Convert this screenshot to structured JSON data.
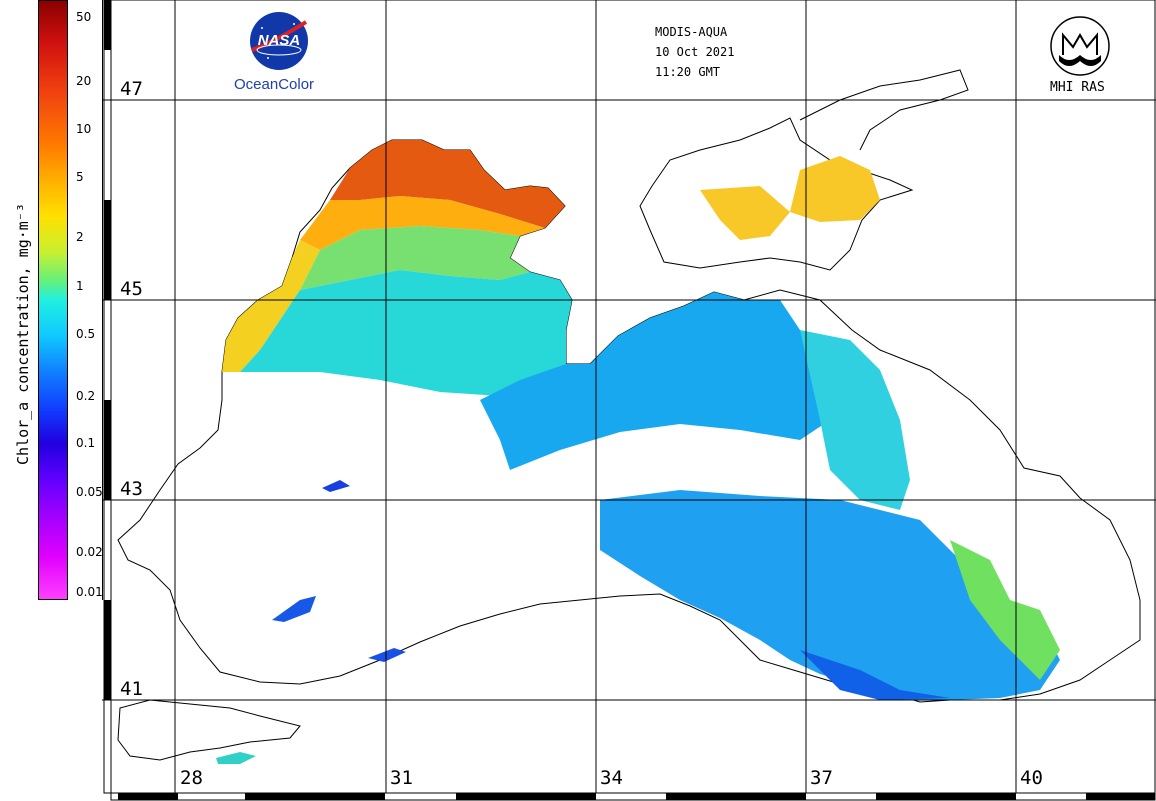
{
  "colorbar": {
    "title": "Chlor_a concentration, mg·m⁻³",
    "ticks": [
      "50",
      "20",
      "10",
      "5",
      "2",
      "1",
      "0.5",
      "0.2",
      "0.1",
      "0.05",
      "0.02",
      "0.01"
    ]
  },
  "header": {
    "sensor": "MODIS-AQUA",
    "date": "10 Oct 2021",
    "time": "11:20 GMT"
  },
  "logos": {
    "nasa_text": "NASA",
    "oceancolor": "OceanColor",
    "mhi": "MHI RAS"
  },
  "latitudes": [
    "47",
    "45",
    "43",
    "41"
  ],
  "longitudes": [
    "28",
    "31",
    "34",
    "37",
    "40"
  ]
}
